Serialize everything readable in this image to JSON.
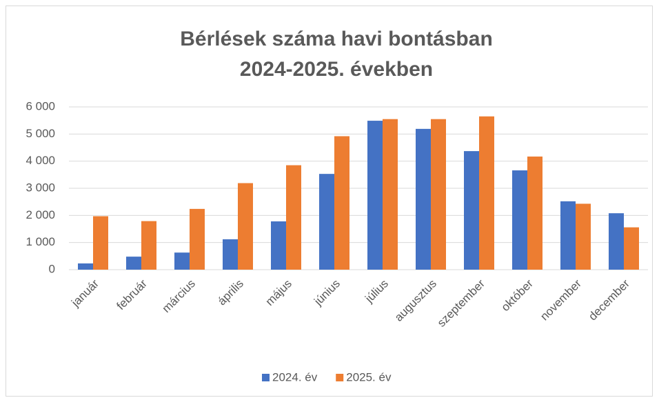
{
  "chart_data": {
    "type": "bar",
    "title": [
      "Bérlések száma havi bontásban",
      "2024-2025. években"
    ],
    "categories": [
      "január",
      "február",
      "március",
      "április",
      "május",
      "június",
      "július",
      "augusztus",
      "szeptember",
      "október",
      "november",
      "december"
    ],
    "series": [
      {
        "name": "2024. év",
        "color": "#4472c4",
        "values": [
          230,
          480,
          630,
          1120,
          1780,
          3530,
          5490,
          5190,
          4370,
          3660,
          2520,
          2080
        ]
      },
      {
        "name": "2025. év",
        "color": "#ed7d31",
        "values": [
          1970,
          1790,
          2240,
          3190,
          3850,
          4920,
          5550,
          5550,
          5650,
          4170,
          2430,
          1560
        ]
      }
    ],
    "ylim": [
      0,
      6000
    ],
    "yticks": [
      0,
      {
        "value": 1000,
        "label": "1 000"
      },
      {
        "value": 2000,
        "label": "2 000"
      },
      {
        "value": 3000,
        "label": "3 000"
      },
      {
        "value": 4000,
        "label": "4 000"
      },
      {
        "value": 5000,
        "label": "5 000"
      },
      {
        "value": 6000,
        "label": "6 000"
      }
    ],
    "grid": true,
    "legend": "bottom"
  }
}
